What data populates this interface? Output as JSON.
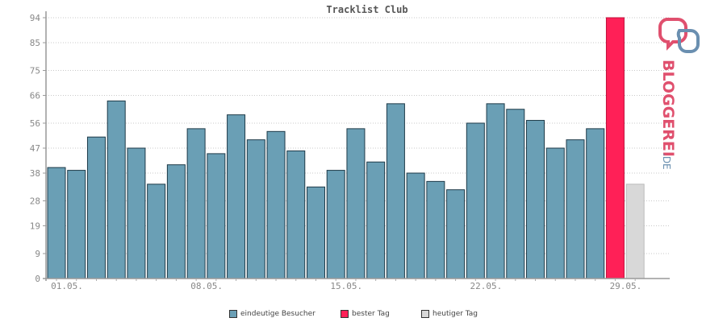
{
  "chart_data": {
    "type": "bar",
    "title": "Tracklist Club",
    "xlabel": "",
    "ylabel": "",
    "ylim": [
      0,
      94
    ],
    "yticks": [
      0,
      9,
      19,
      28,
      38,
      47,
      56,
      66,
      75,
      85,
      94
    ],
    "xtick_labels": [
      "01.05.",
      "08.05.",
      "15.05.",
      "22.05.",
      "29.05."
    ],
    "xtick_indices": [
      1,
      8,
      15,
      22,
      29
    ],
    "grid": true,
    "legend_placement": "bottom",
    "categories": [
      "01.05.",
      "02.05.",
      "03.05.",
      "04.05.",
      "05.05.",
      "06.05.",
      "07.05.",
      "08.05.",
      "09.05.",
      "10.05.",
      "11.05.",
      "12.05.",
      "13.05.",
      "14.05.",
      "15.05.",
      "16.05.",
      "17.05.",
      "18.05.",
      "19.05.",
      "20.05.",
      "21.05.",
      "22.05.",
      "23.05.",
      "24.05.",
      "25.05.",
      "26.05.",
      "27.05.",
      "28.05.",
      "29.05.",
      "30.05."
    ],
    "series": [
      {
        "name": "eindeutige Besucher",
        "color": "#6a9fb5",
        "values": [
          40,
          39,
          51,
          64,
          47,
          34,
          41,
          54,
          45,
          59,
          50,
          53,
          46,
          33,
          39,
          54,
          42,
          63,
          38,
          35,
          32,
          56,
          63,
          61,
          57,
          47,
          50,
          54,
          null,
          null
        ]
      },
      {
        "name": "bester Tag",
        "color": "#ff2057",
        "values": [
          null,
          null,
          null,
          null,
          null,
          null,
          null,
          null,
          null,
          null,
          null,
          null,
          null,
          null,
          null,
          null,
          null,
          null,
          null,
          null,
          null,
          null,
          null,
          null,
          null,
          null,
          null,
          null,
          94,
          null
        ]
      },
      {
        "name": "heutiger Tag",
        "color": "#d8d8d8",
        "values": [
          null,
          null,
          null,
          null,
          null,
          null,
          null,
          null,
          null,
          null,
          null,
          null,
          null,
          null,
          null,
          null,
          null,
          null,
          null,
          null,
          null,
          null,
          null,
          null,
          null,
          null,
          null,
          null,
          null,
          34
        ]
      }
    ]
  },
  "legend": {
    "items": [
      {
        "label": "eindeutige Besucher",
        "color": "#6a9fb5"
      },
      {
        "label": "bester Tag",
        "color": "#ff2057"
      },
      {
        "label": "heutiger Tag",
        "color": "#d8d8d8"
      }
    ]
  },
  "logo": {
    "text": "BLOGGEREI.DE"
  }
}
